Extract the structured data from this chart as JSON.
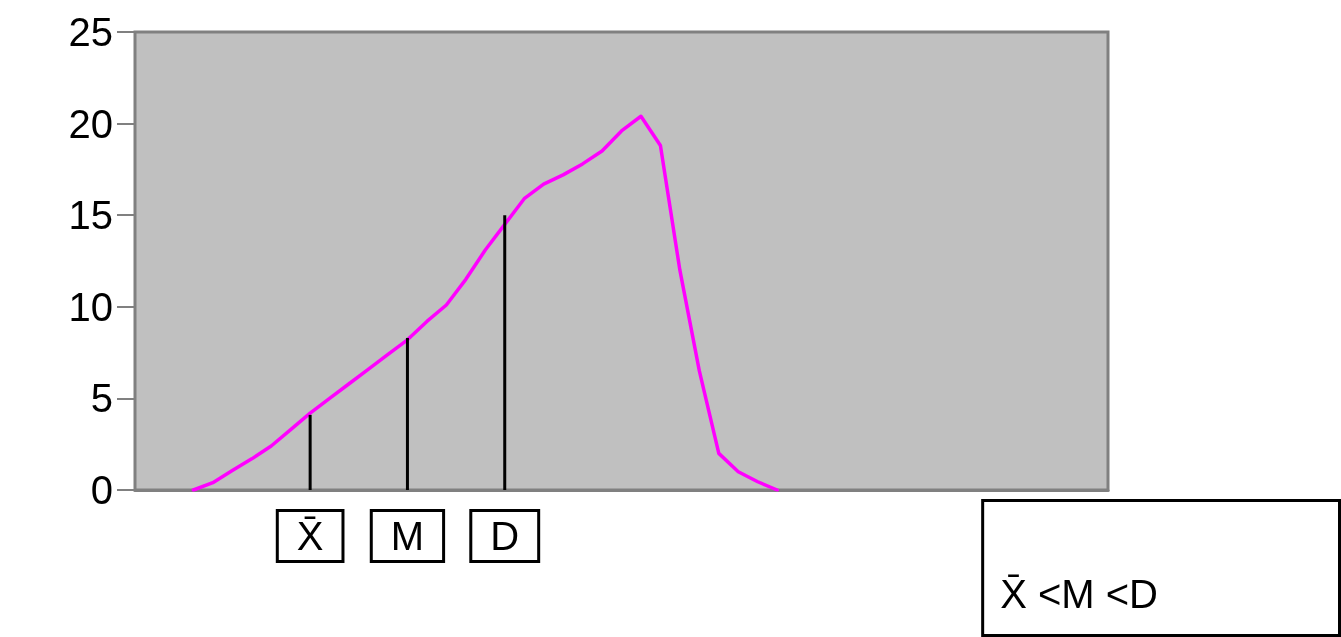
{
  "chart_data": {
    "type": "line",
    "categories": [
      null,
      null,
      null,
      null,
      null,
      null,
      null,
      null,
      null,
      "X̄",
      null,
      null,
      null,
      null,
      "M",
      null,
      null,
      null,
      null,
      "D",
      null,
      null,
      null,
      null,
      null,
      null,
      null,
      null,
      null,
      null,
      null,
      null,
      null,
      null,
      null,
      null,
      null,
      null,
      null,
      null,
      null,
      null,
      null,
      null,
      null,
      null,
      null,
      null,
      null,
      null,
      null
    ],
    "ylim": [
      0,
      25
    ],
    "yticks": [
      0,
      5,
      10,
      15,
      20,
      25
    ],
    "grid": false,
    "marker": "none",
    "line_style": "solid",
    "series": [
      {
        "color": "#ff00ff",
        "values": [
          null,
          null,
          null,
          0,
          0.4,
          1.06,
          1.7,
          2.4,
          3.3,
          4.2,
          5.0,
          5.8,
          6.6,
          7.4,
          8.2,
          9.2,
          10.1,
          11.5,
          13.1,
          14.5,
          15.9,
          16.7,
          17.2,
          17.8,
          18.5,
          19.6,
          20.4,
          18.8,
          12.0,
          6.5,
          2.0,
          1.0,
          0.45,
          0,
          null,
          null,
          null,
          null,
          null,
          null,
          null,
          null,
          null,
          null,
          null,
          null,
          null,
          null,
          null,
          null,
          null
        ]
      },
      {
        "type": "bar",
        "color": "#000000",
        "values": [
          null,
          null,
          null,
          null,
          null,
          null,
          null,
          null,
          null,
          4.1,
          null,
          null,
          null,
          null,
          8.3,
          null,
          null,
          null,
          null,
          15.0,
          null,
          null,
          null,
          null,
          null,
          null,
          null,
          null,
          null,
          null,
          null,
          null,
          null,
          null,
          null,
          null,
          null,
          null,
          null,
          null,
          null,
          null,
          null,
          null,
          null,
          null,
          null,
          null,
          null,
          null,
          null
        ]
      }
    ],
    "annotations": [
      "X̄ <M <D"
    ]
  }
}
